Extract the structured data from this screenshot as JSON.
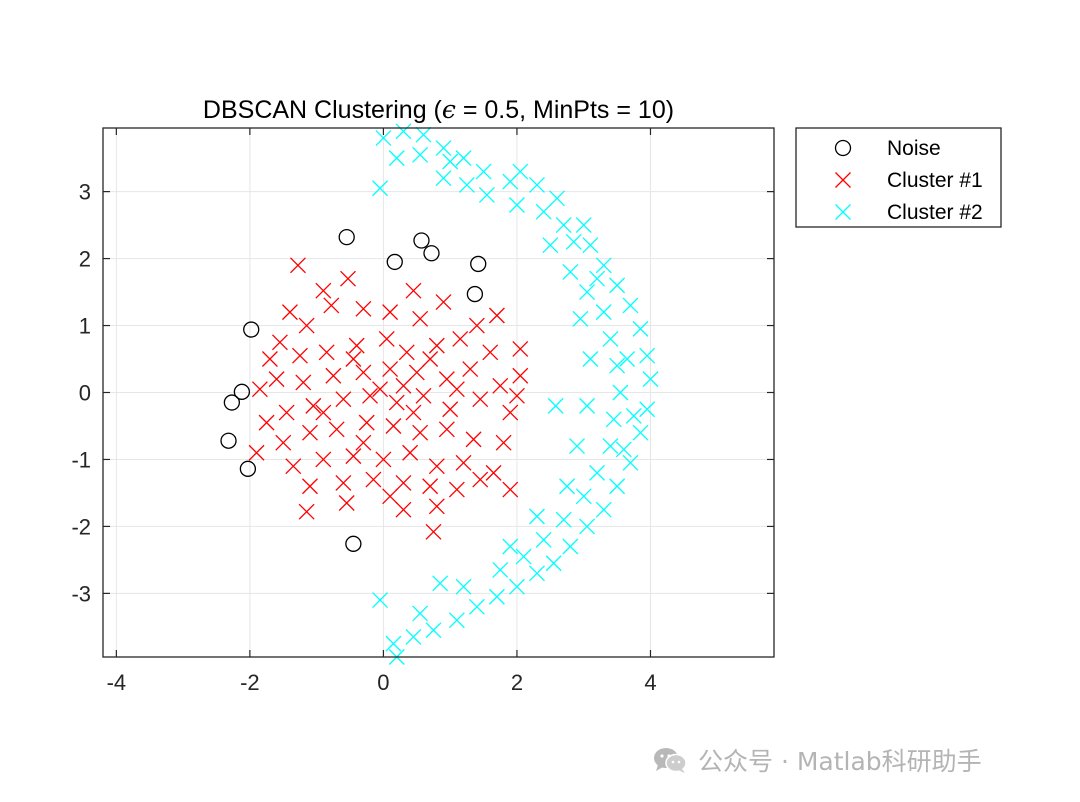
{
  "chart_data": {
    "type": "scatter",
    "title_prefix": "DBSCAN Clustering (",
    "title_epsilon_symbol": "ϵ",
    "title_suffix": " = 0.5, MinPts = 10)",
    "xlim": [
      -4.2,
      5.85
    ],
    "ylim": [
      -3.95,
      3.95
    ],
    "x_ticks": [
      -4,
      -2,
      0,
      2,
      4
    ],
    "y_ticks": [
      -3,
      -2,
      -1,
      0,
      1,
      2,
      3
    ],
    "x_tick_labels": [
      "-4",
      "-2",
      "0",
      "2",
      "4"
    ],
    "y_tick_labels": [
      "-3",
      "-2",
      "-1",
      "0",
      "1",
      "2",
      "3"
    ],
    "grid": true,
    "legend_position": "outside-top-right",
    "series": [
      {
        "name": "Noise",
        "marker": "circle",
        "color": "#000000",
        "points": [
          [
            -0.55,
            2.32
          ],
          [
            0.17,
            1.95
          ],
          [
            0.57,
            2.27
          ],
          [
            0.72,
            2.08
          ],
          [
            1.42,
            1.92
          ],
          [
            1.37,
            1.47
          ],
          [
            -1.98,
            0.94
          ],
          [
            -2.12,
            0.01
          ],
          [
            -2.27,
            -0.15
          ],
          [
            -2.32,
            -0.72
          ],
          [
            -2.03,
            -1.14
          ],
          [
            -0.45,
            -2.26
          ]
        ]
      },
      {
        "name": "Cluster #1",
        "marker": "x",
        "color": "#ff0000",
        "points": [
          [
            -1.28,
            1.9
          ],
          [
            -0.53,
            1.7
          ],
          [
            -0.9,
            1.52
          ],
          [
            0.45,
            1.52
          ],
          [
            -1.4,
            1.2
          ],
          [
            -1.15,
            1.0
          ],
          [
            -0.78,
            1.3
          ],
          [
            -0.3,
            1.25
          ],
          [
            0.1,
            1.2
          ],
          [
            0.55,
            1.1
          ],
          [
            0.9,
            1.35
          ],
          [
            1.4,
            1.0
          ],
          [
            1.7,
            1.15
          ],
          [
            -1.55,
            0.75
          ],
          [
            -1.7,
            0.5
          ],
          [
            -1.25,
            0.55
          ],
          [
            -0.85,
            0.6
          ],
          [
            -0.4,
            0.7
          ],
          [
            0.05,
            0.8
          ],
          [
            0.35,
            0.6
          ],
          [
            0.8,
            0.7
          ],
          [
            1.15,
            0.8
          ],
          [
            1.6,
            0.6
          ],
          [
            2.05,
            0.65
          ],
          [
            -1.85,
            0.05
          ],
          [
            -1.6,
            0.2
          ],
          [
            -1.2,
            0.15
          ],
          [
            -0.75,
            0.25
          ],
          [
            -0.3,
            0.3
          ],
          [
            0.1,
            0.35
          ],
          [
            0.5,
            0.3
          ],
          [
            0.95,
            0.2
          ],
          [
            1.3,
            0.35
          ],
          [
            1.75,
            0.1
          ],
          [
            2.05,
            0.25
          ],
          [
            -1.75,
            -0.45
          ],
          [
            -1.45,
            -0.3
          ],
          [
            -1.05,
            -0.2
          ],
          [
            -0.6,
            -0.1
          ],
          [
            -0.2,
            -0.05
          ],
          [
            0.2,
            -0.15
          ],
          [
            0.6,
            -0.05
          ],
          [
            1.0,
            -0.25
          ],
          [
            1.45,
            -0.1
          ],
          [
            1.9,
            -0.3
          ],
          [
            2.0,
            -0.05
          ],
          [
            -1.5,
            -0.75
          ],
          [
            -1.1,
            -0.6
          ],
          [
            -0.7,
            -0.55
          ],
          [
            -0.25,
            -0.45
          ],
          [
            0.15,
            -0.5
          ],
          [
            0.55,
            -0.6
          ],
          [
            0.95,
            -0.55
          ],
          [
            1.35,
            -0.7
          ],
          [
            1.8,
            -0.75
          ],
          [
            -1.9,
            -0.9
          ],
          [
            -1.35,
            -1.1
          ],
          [
            -0.9,
            -1.0
          ],
          [
            -0.45,
            -0.95
          ],
          [
            0.0,
            -1.0
          ],
          [
            0.4,
            -0.9
          ],
          [
            0.8,
            -1.1
          ],
          [
            1.2,
            -1.05
          ],
          [
            -1.1,
            -1.4
          ],
          [
            -0.6,
            -1.35
          ],
          [
            -0.15,
            -1.3
          ],
          [
            0.3,
            -1.35
          ],
          [
            0.7,
            -1.4
          ],
          [
            1.1,
            -1.45
          ],
          [
            1.45,
            -1.3
          ],
          [
            1.65,
            -1.2
          ],
          [
            1.9,
            -1.45
          ],
          [
            -1.15,
            -1.78
          ],
          [
            -0.55,
            -1.65
          ],
          [
            0.1,
            -1.55
          ],
          [
            0.3,
            -1.75
          ],
          [
            0.8,
            -1.7
          ],
          [
            0.75,
            -2.08
          ],
          [
            -0.05,
            0.05
          ],
          [
            0.3,
            0.1
          ],
          [
            -0.45,
            0.5
          ],
          [
            0.7,
            0.5
          ],
          [
            -0.9,
            -0.3
          ],
          [
            0.45,
            -0.3
          ],
          [
            -0.3,
            -0.75
          ],
          [
            1.1,
            0.05
          ]
        ]
      },
      {
        "name": "Cluster #2",
        "marker": "x",
        "color": "#00ffff",
        "points": [
          [
            0.0,
            3.8
          ],
          [
            0.3,
            3.9
          ],
          [
            0.6,
            3.85
          ],
          [
            0.9,
            3.65
          ],
          [
            1.2,
            3.5
          ],
          [
            0.55,
            3.55
          ],
          [
            0.2,
            3.5
          ],
          [
            -0.05,
            3.05
          ],
          [
            1.5,
            3.3
          ],
          [
            1.9,
            3.15
          ],
          [
            2.05,
            3.3
          ],
          [
            2.3,
            3.1
          ],
          [
            1.25,
            3.1
          ],
          [
            0.9,
            3.2
          ],
          [
            2.0,
            2.8
          ],
          [
            2.4,
            2.7
          ],
          [
            2.7,
            2.5
          ],
          [
            2.85,
            2.25
          ],
          [
            3.1,
            2.2
          ],
          [
            3.3,
            1.9
          ],
          [
            3.5,
            1.6
          ],
          [
            3.7,
            1.3
          ],
          [
            3.85,
            0.95
          ],
          [
            3.95,
            0.55
          ],
          [
            4.0,
            0.2
          ],
          [
            3.95,
            -0.25
          ],
          [
            3.85,
            -0.6
          ],
          [
            3.7,
            -1.05
          ],
          [
            3.5,
            -1.4
          ],
          [
            3.3,
            -1.75
          ],
          [
            3.05,
            -2.0
          ],
          [
            2.8,
            -2.3
          ],
          [
            2.55,
            -2.55
          ],
          [
            2.3,
            -2.7
          ],
          [
            2.0,
            -2.9
          ],
          [
            1.7,
            -3.05
          ],
          [
            1.4,
            -3.2
          ],
          [
            1.1,
            -3.4
          ],
          [
            0.75,
            -3.55
          ],
          [
            0.45,
            -3.65
          ],
          [
            0.15,
            -3.75
          ],
          [
            -0.05,
            -3.1
          ],
          [
            0.2,
            -3.95
          ],
          [
            0.55,
            -3.3
          ],
          [
            1.2,
            -2.9
          ],
          [
            0.85,
            -2.85
          ],
          [
            2.5,
            2.2
          ],
          [
            2.8,
            1.8
          ],
          [
            3.05,
            1.5
          ],
          [
            3.3,
            1.2
          ],
          [
            3.4,
            0.8
          ],
          [
            3.5,
            0.4
          ],
          [
            3.55,
            0.0
          ],
          [
            3.45,
            -0.4
          ],
          [
            3.4,
            -0.8
          ],
          [
            3.2,
            -1.2
          ],
          [
            3.0,
            -1.55
          ],
          [
            2.7,
            -1.9
          ],
          [
            2.4,
            -2.2
          ],
          [
            2.1,
            -2.45
          ],
          [
            1.75,
            -2.65
          ],
          [
            2.6,
            2.9
          ],
          [
            3.0,
            2.5
          ],
          [
            2.95,
            1.1
          ],
          [
            3.1,
            0.5
          ],
          [
            3.05,
            -0.2
          ],
          [
            2.9,
            -0.8
          ],
          [
            2.75,
            -1.4
          ],
          [
            2.3,
            -1.85
          ],
          [
            1.9,
            -2.3
          ],
          [
            2.58,
            -0.2
          ],
          [
            3.75,
            -0.35
          ],
          [
            3.65,
            0.5
          ],
          [
            3.6,
            -0.85
          ],
          [
            3.2,
            1.7
          ],
          [
            1.0,
            3.45
          ],
          [
            1.55,
            2.95
          ]
        ]
      }
    ]
  },
  "watermark": {
    "icon": "wechat-icon",
    "text": "公众号 · Matlab科研助手"
  }
}
